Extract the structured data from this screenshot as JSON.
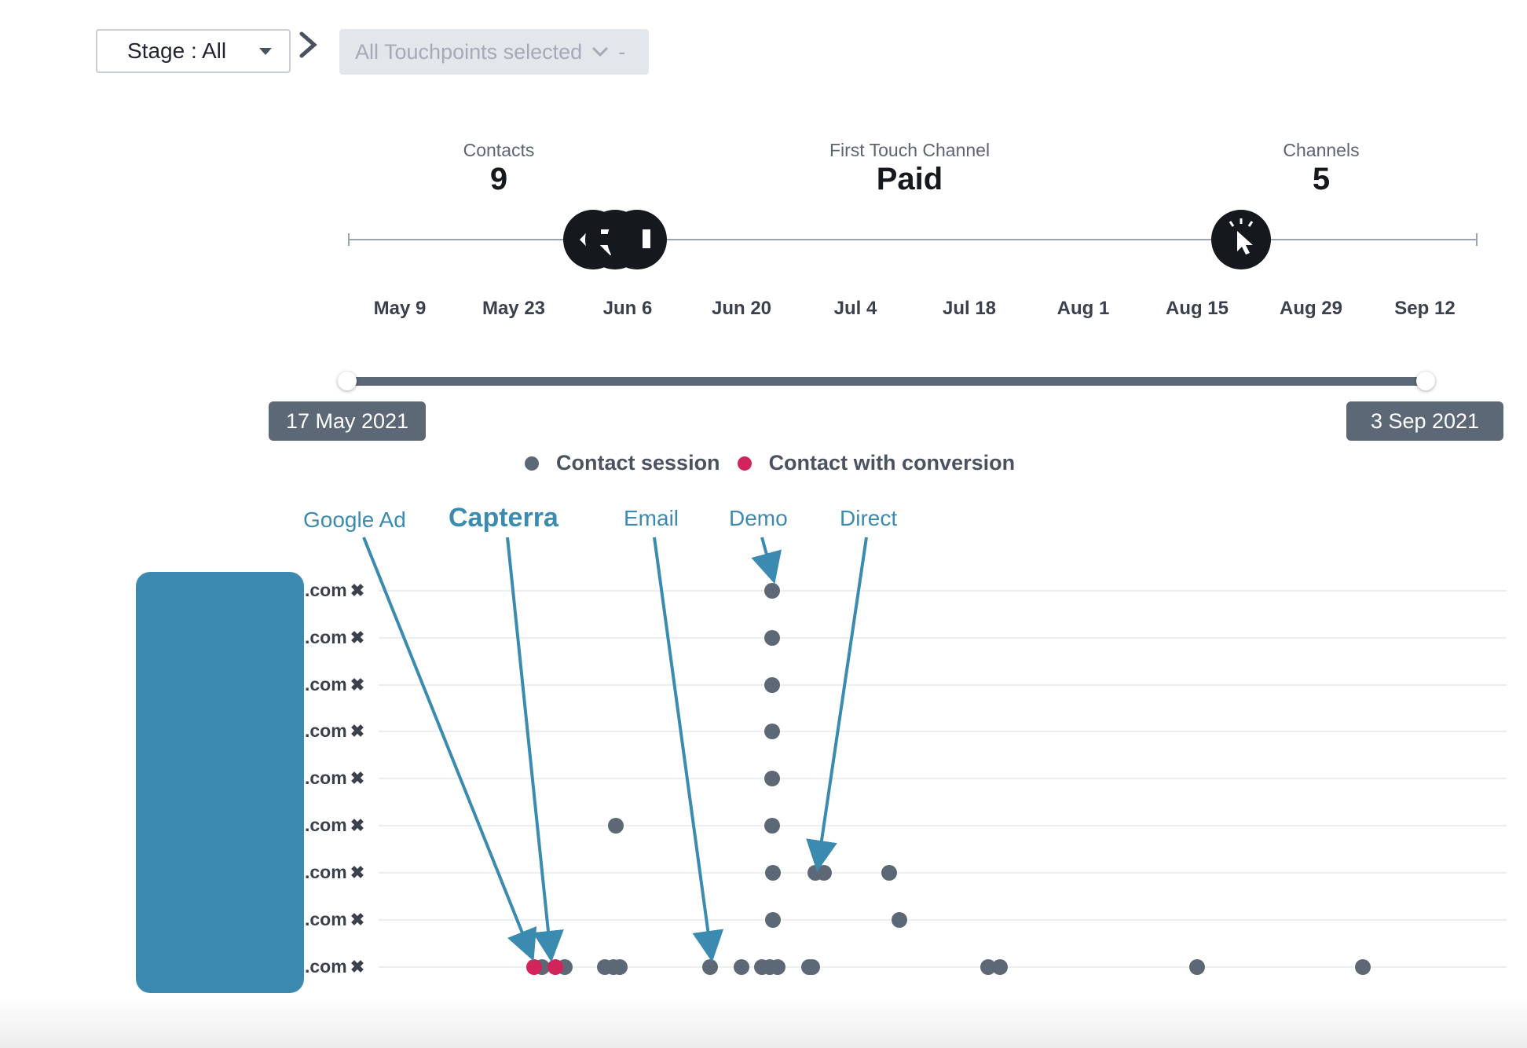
{
  "filters": {
    "stage_label": "Stage : All",
    "touchpoints_label": "All Touchpoints selected",
    "touchpoints_suffix": "-"
  },
  "stats": [
    {
      "label": "Contacts",
      "value": "9"
    },
    {
      "label": "First Touch Channel",
      "value": "Paid"
    },
    {
      "label": "Channels",
      "value": "5"
    }
  ],
  "timeline": {
    "ticks": [
      "May 9",
      "May 23",
      "Jun 6",
      "Jun 20",
      "Jul 4",
      "Jul 18",
      "Aug 1",
      "Aug 15",
      "Aug 29",
      "Sep 12"
    ],
    "icons": [
      "capterra-icon",
      "exchange-icon",
      "pointer-click-icon"
    ]
  },
  "range": {
    "start": "17 May 2021",
    "end": "3 Sep 2021"
  },
  "legend": [
    {
      "label": "Contact session",
      "color": "#5c6875"
    },
    {
      "label": "Contact with conversion",
      "color": "#d1245a"
    }
  ],
  "annotations": [
    {
      "label": "Google Ad"
    },
    {
      "label": "Capterra"
    },
    {
      "label": "Email"
    },
    {
      "label": "Demo"
    },
    {
      "label": "Direct"
    }
  ],
  "rows": [
    {
      "label": ".com"
    },
    {
      "label": ".com"
    },
    {
      "label": ".com"
    },
    {
      "label": ".com"
    },
    {
      "label": ".com"
    },
    {
      "label": ".com"
    },
    {
      "label": ".com"
    },
    {
      "label": ".com"
    },
    {
      "label": ".com"
    }
  ],
  "colors": {
    "accent": "#3b8ab0",
    "session": "#5c6875",
    "conversion": "#d1245a",
    "redaction": "#3c8ab0"
  }
}
